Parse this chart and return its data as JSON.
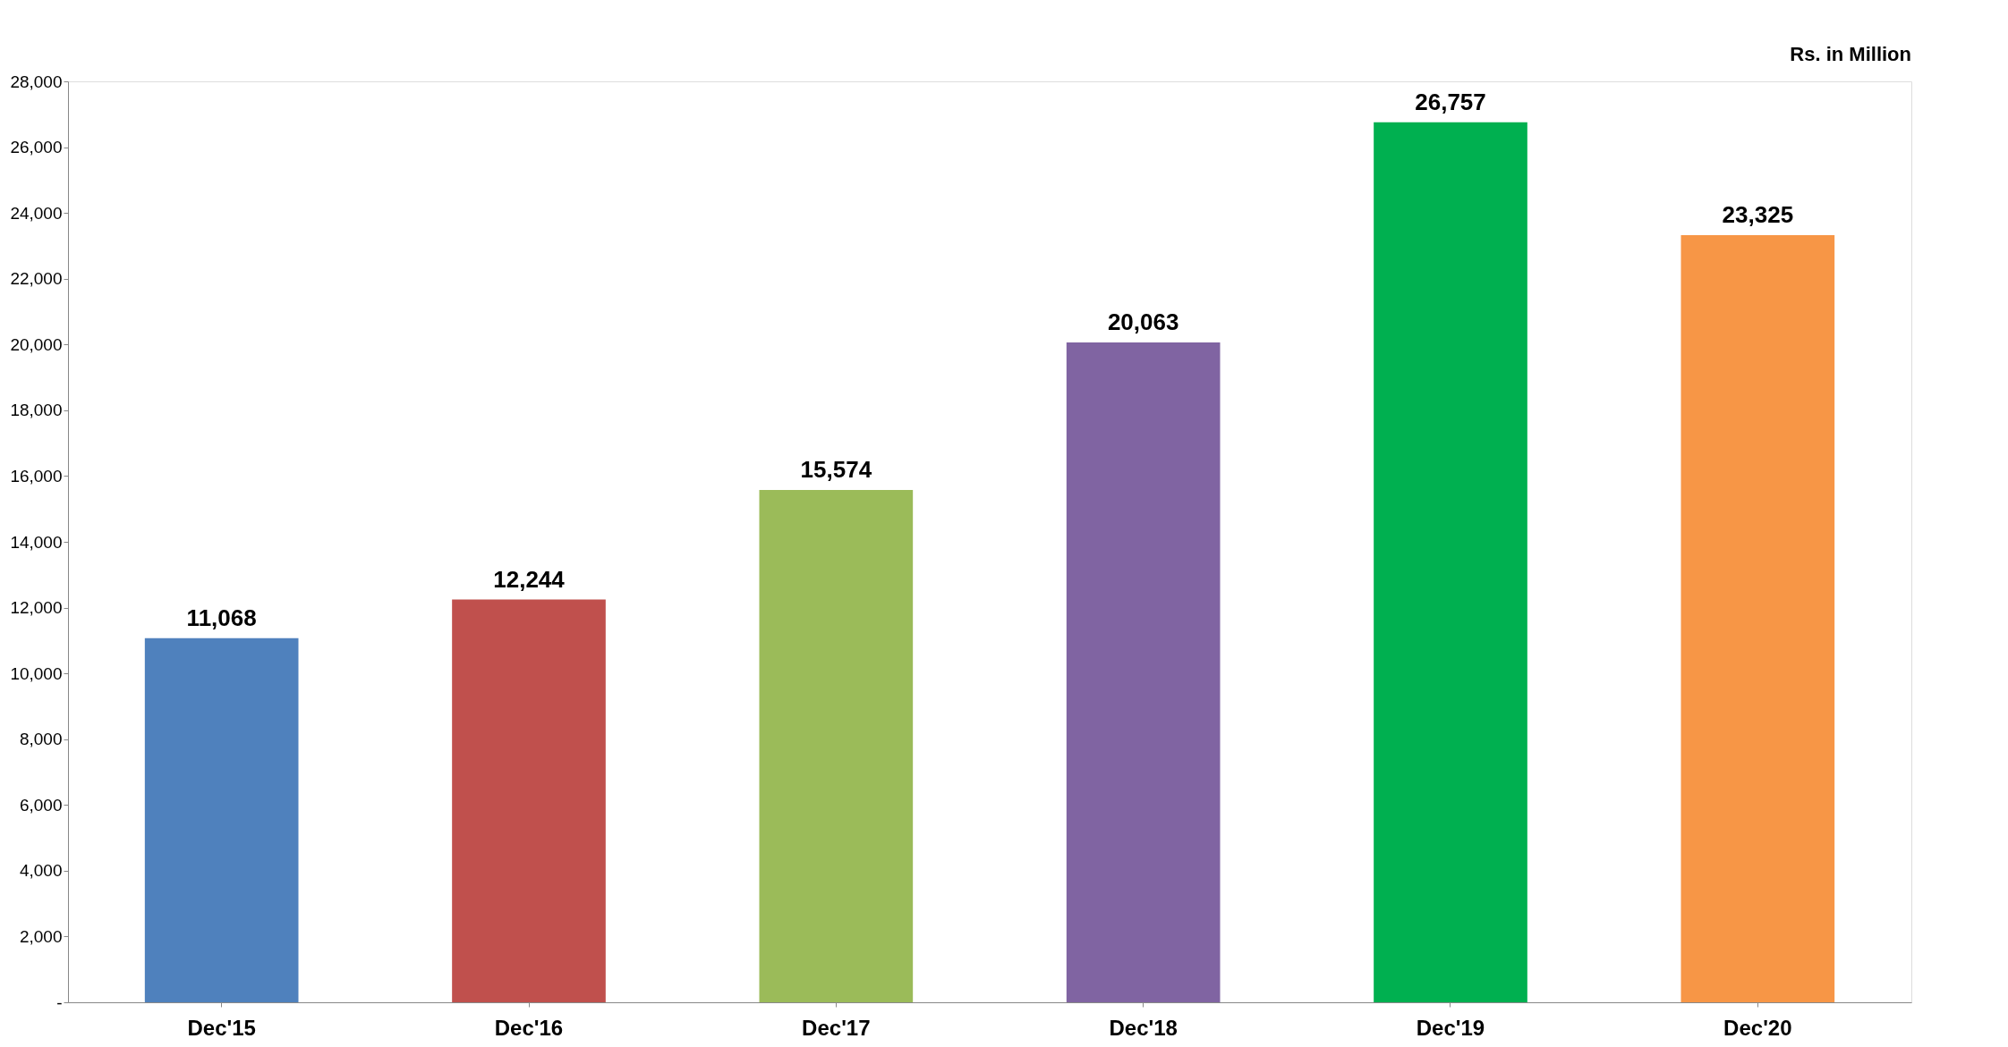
{
  "chart_data": {
    "type": "bar",
    "categories": [
      "Dec'15",
      "Dec'16",
      "Dec'17",
      "Dec'18",
      "Dec'19",
      "Dec'20"
    ],
    "values": [
      11068,
      12244,
      15574,
      20063,
      26757,
      23325
    ],
    "value_labels": [
      "11,068",
      "12,244",
      "15,574",
      "20,063",
      "26,757",
      "23,325"
    ],
    "colors": [
      "#4f81bd",
      "#c0504d",
      "#9bbb59",
      "#8064a2",
      "#00b050",
      "#f79646"
    ],
    "ylim": [
      0,
      28000
    ],
    "yticks": [
      {
        "value": 0,
        "label": "-"
      },
      {
        "value": 2000,
        "label": "2,000"
      },
      {
        "value": 4000,
        "label": "4,000"
      },
      {
        "value": 6000,
        "label": "6,000"
      },
      {
        "value": 8000,
        "label": "8,000"
      },
      {
        "value": 10000,
        "label": "10,000"
      },
      {
        "value": 12000,
        "label": "12,000"
      },
      {
        "value": 14000,
        "label": "14,000"
      },
      {
        "value": 16000,
        "label": "16,000"
      },
      {
        "value": 18000,
        "label": "18,000"
      },
      {
        "value": 20000,
        "label": "20,000"
      },
      {
        "value": 22000,
        "label": "22,000"
      },
      {
        "value": 24000,
        "label": "24,000"
      },
      {
        "value": 26000,
        "label": "26,000"
      },
      {
        "value": 28000,
        "label": "28,000"
      }
    ],
    "grid": false,
    "annotations": [
      "Rs. in Million"
    ]
  }
}
